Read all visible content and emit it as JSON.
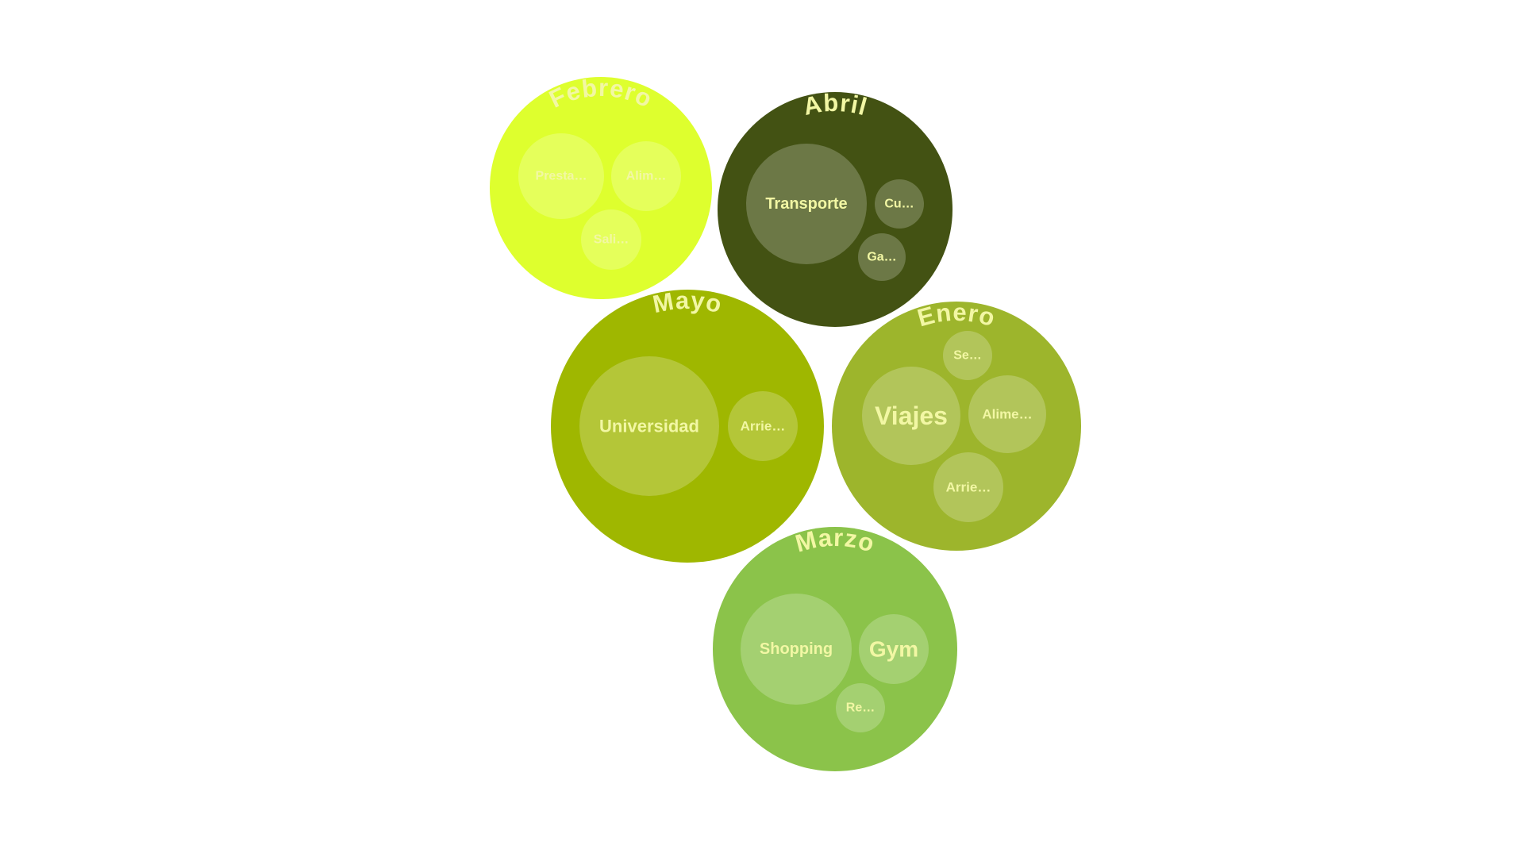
{
  "chart_data": {
    "type": "circle-packing",
    "label_color": "#f2f7a4",
    "groups": [
      {
        "name": "Febrero",
        "color": "#deff2e",
        "children": [
          {
            "label": "Presta…",
            "value": 25
          },
          {
            "label": "Alim…",
            "value": 17
          },
          {
            "label": "Sali…",
            "value": 13
          }
        ]
      },
      {
        "name": "Abril",
        "color": "#435213",
        "children": [
          {
            "label": "Transporte",
            "value": 52
          },
          {
            "label": "Cu…",
            "value": 9
          },
          {
            "label": "Ga…",
            "value": 8
          }
        ]
      },
      {
        "name": "Mayo",
        "color": "#9fb700",
        "children": [
          {
            "label": "Universidad",
            "value": 70
          },
          {
            "label": "Arrie…",
            "value": 17
          }
        ]
      },
      {
        "name": "Enero",
        "color": "#9db52c",
        "children": [
          {
            "label": "Viajes",
            "value": 35
          },
          {
            "label": "Alime…",
            "value": 22
          },
          {
            "label": "Arrie…",
            "value": 17
          },
          {
            "label": "Se…",
            "value": 9
          }
        ]
      },
      {
        "name": "Marzo",
        "color": "#8bc34a",
        "children": [
          {
            "label": "Shopping",
            "value": 43
          },
          {
            "label": "Gym",
            "value": 17
          },
          {
            "label": "Re…",
            "value": 8
          }
        ]
      }
    ]
  }
}
